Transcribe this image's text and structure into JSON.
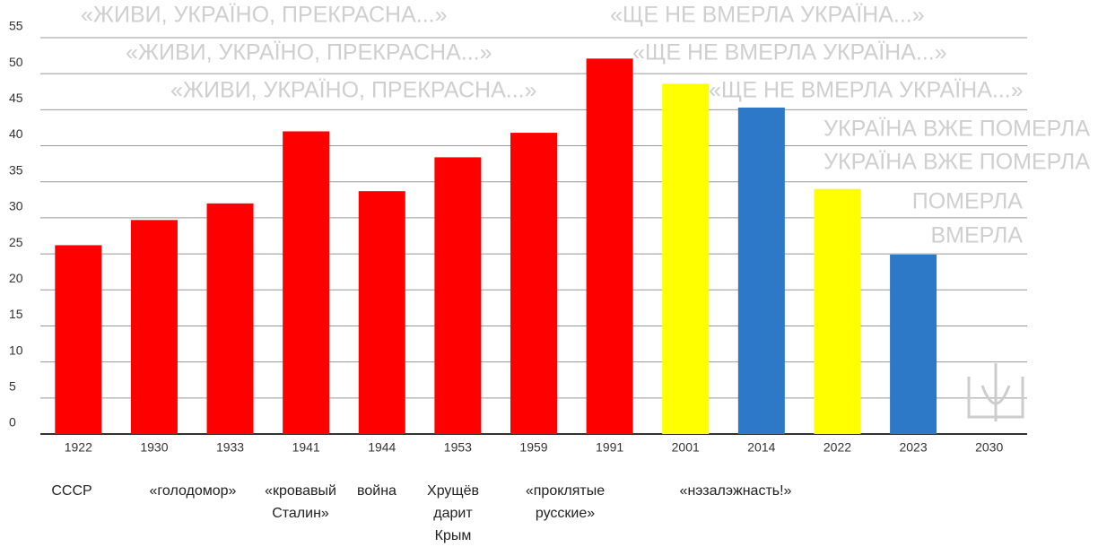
{
  "chart_data": {
    "type": "bar",
    "categories": [
      "1922",
      "1930",
      "1933",
      "1941",
      "1944",
      "1953",
      "1959",
      "1991",
      "2001",
      "2014",
      "2022",
      "2023",
      "2030"
    ],
    "values": [
      26.2,
      29.7,
      32,
      42,
      33.7,
      38.4,
      41.8,
      52.1,
      48.6,
      45.3,
      34,
      24.9,
      null
    ],
    "colors": [
      "#ff0000",
      "#ff0000",
      "#ff0000",
      "#ff0000",
      "#ff0000",
      "#ff0000",
      "#ff0000",
      "#ff0000",
      "#ffff00",
      "#2e78c8",
      "#ffff00",
      "#2e78c8",
      "#2e78c8"
    ],
    "ylim": [
      0,
      55
    ],
    "yticks": [
      0,
      5,
      10,
      15,
      20,
      25,
      30,
      35,
      40,
      45,
      50,
      55
    ],
    "grid": true,
    "annotations": [
      [
        "СССР"
      ],
      [
        "«голодомор»"
      ],
      [
        "«кровавый",
        "Сталин»"
      ],
      [
        "война"
      ],
      [
        "Хрущёв",
        "дарит",
        "Крым"
      ],
      [
        "«проклятые",
        "русские»"
      ],
      [
        "«нэзалэжнасть!»"
      ]
    ],
    "background_text": [
      "«ЖИВИ, УКРАЇНО, ПРЕКРАСНА...»",
      "«ЩЕ НЕ ВМЕРЛА УКРАЇНА...»",
      "«ЖИВИ, УКРАЇНО, ПРЕКРАСНА...»",
      "«ЩЕ НЕ ВМЕРЛА УКРАЇНА...»",
      "«ЖИВИ, УКРАЇНО, ПРЕКРАСНА...»",
      "«ЩЕ НЕ ВМЕРЛА УКРАЇНА...»",
      "УКРАЇНА ВЖЕ ПОМЕРЛА",
      "УКРАЇНА ВЖЕ ПОМЕРЛА",
      "ПОМЕРЛА",
      "ВМЕРЛА"
    ]
  }
}
